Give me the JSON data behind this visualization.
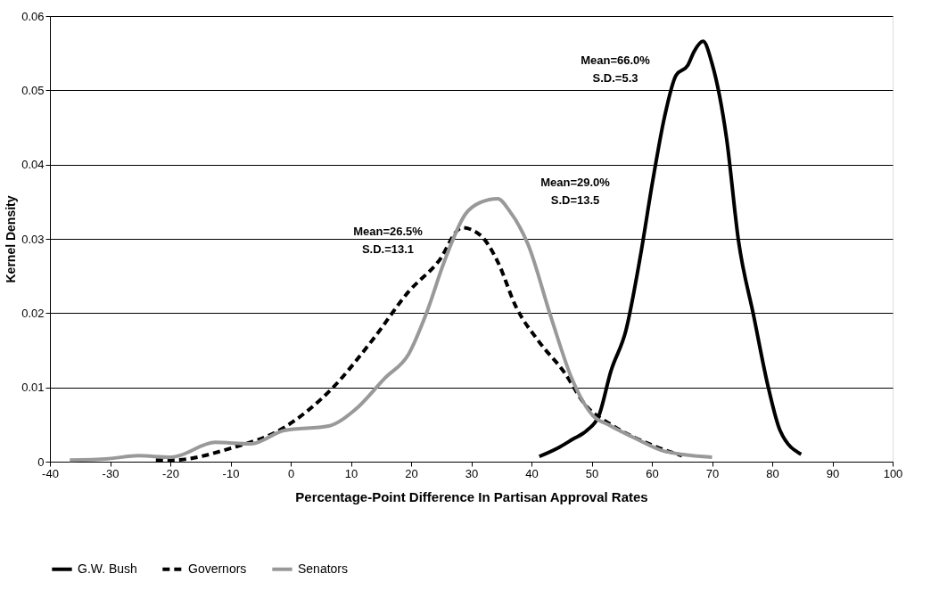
{
  "chart_data": {
    "type": "line",
    "xlabel": "Percentage-Point Difference In Partisan Approval Rates",
    "ylabel": "Kernel Density",
    "xlim": [
      -40,
      100
    ],
    "xticks": [
      -40,
      -30,
      -20,
      -10,
      0,
      10,
      20,
      30,
      40,
      50,
      60,
      70,
      80,
      90,
      100
    ],
    "ylim": [
      0,
      0.06
    ],
    "yticks": [
      0,
      0.01,
      0.02,
      0.03,
      0.04,
      0.05,
      0.06
    ],
    "grid": "y",
    "legend": "bottom",
    "series": [
      {
        "name": "G.W. Bush",
        "color": "#000000",
        "line_style": "solid",
        "x": [
          41.3,
          44.3,
          46.8,
          49.2,
          51.2,
          53.2,
          55.7,
          58.1,
          60.1,
          62.1,
          64,
          66,
          67,
          68.5,
          70,
          72.4,
          74.4,
          76.9,
          79.4,
          81.3,
          84.8
        ],
        "values": [
          0.0007,
          0.0018,
          0.003,
          0.0042,
          0.0062,
          0.0122,
          0.0177,
          0.0277,
          0.0376,
          0.0464,
          0.052,
          0.0534,
          0.0552,
          0.0566,
          0.0536,
          0.0436,
          0.0297,
          0.0197,
          0.0098,
          0.0042,
          0.001
        ]
      },
      {
        "name": "Governors",
        "color": "#000000",
        "line_style": "dashed",
        "x": [
          -22.4,
          -19.9,
          -10,
          -1.1,
          6.8,
          13.7,
          19.6,
          24.5,
          28.5,
          31.5,
          34.4,
          37.4,
          41.3,
          45.3,
          49.2,
          53.2,
          60.1,
          65
        ],
        "values": [
          0.0002,
          0.0002,
          0.0018,
          0.0046,
          0.0098,
          0.0165,
          0.0229,
          0.0269,
          0.0315,
          0.0305,
          0.0269,
          0.0209,
          0.0161,
          0.0122,
          0.0074,
          0.005,
          0.0022,
          0.0008
        ]
      },
      {
        "name": "Senators",
        "color": "#999999",
        "line_style": "solid",
        "x": [
          -36.7,
          -30.3,
          -25.3,
          -19.9,
          -12.5,
          -6.6,
          -1.1,
          6.3,
          10.7,
          15.7,
          19.6,
          22.6,
          25.5,
          29,
          31.5,
          34.4,
          36.4,
          39.4,
          43.3,
          46.8,
          50.2,
          52.7,
          57.6,
          62.1,
          70
        ],
        "values": [
          0.0002,
          0.0004,
          0.0008,
          0.0006,
          0.0026,
          0.0024,
          0.0042,
          0.0048,
          0.007,
          0.0113,
          0.0145,
          0.0201,
          0.0269,
          0.0333,
          0.0349,
          0.0354,
          0.0337,
          0.0293,
          0.0193,
          0.011,
          0.0062,
          0.005,
          0.003,
          0.0014,
          0.0006
        ]
      }
    ],
    "annotations": [
      "Mean=66.0%\nS.D.=5.3",
      "Mean=26.5%\nS.D.=13.1",
      "Mean=29.0%\nS.D=13.5"
    ]
  }
}
